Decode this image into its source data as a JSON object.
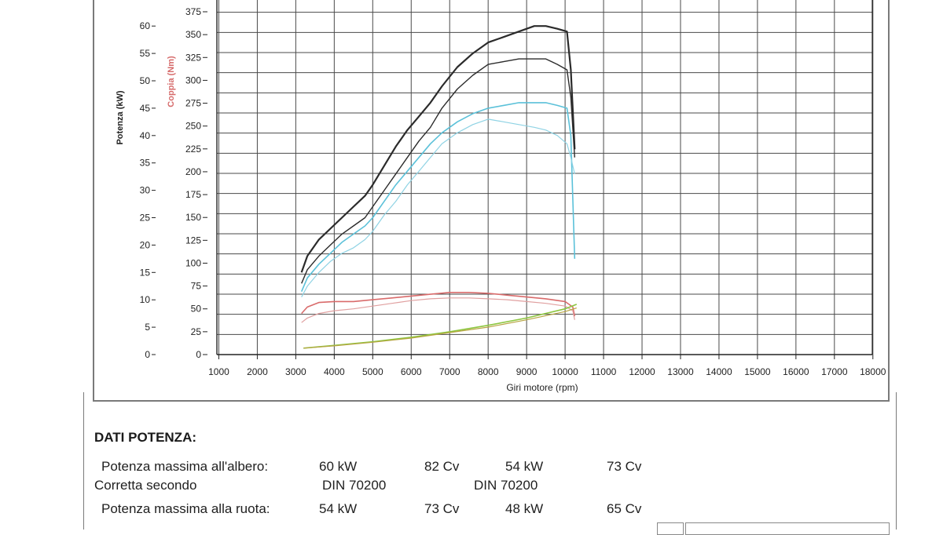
{
  "chart_data": {
    "type": "line",
    "xlabel": "Giri motore (rpm)",
    "x_ticks": [
      1000,
      2000,
      3000,
      4000,
      5000,
      6000,
      7000,
      8000,
      9000,
      10000,
      11000,
      12000,
      13000,
      14000,
      15000,
      16000,
      17000,
      18000
    ],
    "xlim": [
      800,
      18000
    ],
    "y_left": {
      "label": "Potenza (kW)",
      "ticks": [
        0,
        5,
        10,
        15,
        20,
        25,
        30,
        35,
        40,
        45,
        50,
        55,
        60
      ],
      "ylim": [
        0,
        66
      ]
    },
    "y_right": {
      "label": "Coppia (Nm)",
      "ticks": [
        0,
        25,
        50,
        75,
        100,
        125,
        150,
        175,
        200,
        225,
        250,
        275,
        300,
        325,
        350,
        375
      ],
      "ylim": [
        0,
        390
      ]
    },
    "grid": true,
    "series": [
      {
        "color": "#2b2b2b",
        "axis": "left",
        "width": 2.2,
        "x": [
          3150,
          3300,
          3600,
          3900,
          4200,
          4500,
          4800,
          5000,
          5300,
          5600,
          5900,
          6200,
          6500,
          6800,
          7200,
          7600,
          8000,
          8400,
          8800,
          9200,
          9500,
          9800,
          10050,
          10150,
          10250
        ],
        "y": [
          15.0,
          18.0,
          21.0,
          23.0,
          25.0,
          27.0,
          29.0,
          31.0,
          34.5,
          38.0,
          41.0,
          43.5,
          46.0,
          49.0,
          52.5,
          55.0,
          57.0,
          58.0,
          59.0,
          60.0,
          60.0,
          59.5,
          59.0,
          52.0,
          37.5
        ]
      },
      {
        "color": "#2b2b2b",
        "axis": "left",
        "width": 1.4,
        "x": [
          3150,
          3300,
          3600,
          3900,
          4200,
          4500,
          4800,
          5000,
          5300,
          5600,
          5900,
          6200,
          6500,
          6800,
          7200,
          7600,
          8000,
          8400,
          8800,
          9200,
          9500,
          9800,
          10050,
          10150,
          10250
        ],
        "y": [
          13.0,
          15.5,
          18.0,
          20.0,
          22.0,
          23.5,
          25.0,
          27.0,
          30.0,
          33.0,
          36.0,
          39.0,
          41.5,
          45.0,
          48.5,
          51.0,
          53.0,
          53.5,
          54.0,
          54.0,
          54.0,
          53.0,
          52.0,
          47.0,
          36.0
        ]
      },
      {
        "color": "#5bc1d9",
        "axis": "left",
        "width": 1.6,
        "x": [
          3150,
          3300,
          3600,
          3900,
          4200,
          4500,
          4800,
          5000,
          5300,
          5600,
          5900,
          6200,
          6500,
          6800,
          7200,
          7600,
          8000,
          8400,
          8800,
          9200,
          9500,
          9800,
          10050,
          10150,
          10250
        ],
        "y": [
          11.5,
          14.0,
          16.5,
          18.5,
          20.5,
          22.0,
          23.5,
          25.0,
          28.0,
          31.0,
          33.5,
          36.0,
          38.5,
          40.5,
          42.5,
          44.0,
          45.0,
          45.5,
          46.0,
          46.0,
          46.0,
          45.5,
          45.0,
          40.0,
          17.5
        ]
      },
      {
        "color": "#8fd3e4",
        "axis": "left",
        "width": 1.2,
        "x": [
          3150,
          3300,
          3600,
          3900,
          4200,
          4500,
          4800,
          5000,
          5300,
          5600,
          5900,
          6200,
          6500,
          6800,
          7200,
          7600,
          8000,
          8400,
          8800,
          9200,
          9500,
          9800,
          10050,
          10150,
          10250
        ],
        "y": [
          10.5,
          12.5,
          15.0,
          17.0,
          18.5,
          19.5,
          21.0,
          22.5,
          25.5,
          28.0,
          31.0,
          33.5,
          36.0,
          38.5,
          40.5,
          42.0,
          43.0,
          42.5,
          42.0,
          41.5,
          41.0,
          40.0,
          38.5,
          36.0,
          33.0
        ]
      },
      {
        "color": "#d96b6b",
        "axis": "right",
        "width": 1.6,
        "x": [
          3150,
          3300,
          3600,
          4000,
          4500,
          5000,
          5500,
          6000,
          6500,
          7000,
          7500,
          8000,
          8500,
          9000,
          9500,
          10000,
          10200,
          10250
        ],
        "y": [
          45,
          52,
          57,
          58,
          58,
          60,
          62,
          64,
          66,
          68,
          68,
          67,
          65,
          63,
          61,
          58,
          52,
          42
        ]
      },
      {
        "color": "#e0a0a0",
        "axis": "right",
        "width": 1.2,
        "x": [
          3150,
          3300,
          3600,
          4000,
          4500,
          5000,
          5500,
          6000,
          6500,
          7000,
          7500,
          8000,
          8500,
          9000,
          9500,
          10000,
          10200,
          10250
        ],
        "y": [
          35,
          40,
          45,
          48,
          50,
          53,
          56,
          59,
          61,
          62,
          62,
          61,
          60,
          58,
          56,
          53,
          48,
          38
        ]
      },
      {
        "color": "#8cc63f",
        "axis": "right",
        "width": 1.6,
        "x": [
          3200,
          4000,
          5000,
          6000,
          7000,
          8000,
          9000,
          10000,
          10300
        ],
        "y": [
          7,
          10,
          14,
          19,
          25,
          32,
          40,
          50,
          55
        ]
      },
      {
        "color": "#b7a542",
        "axis": "right",
        "width": 1.2,
        "x": [
          3200,
          4000,
          5000,
          6000,
          7000,
          8000,
          9000,
          10000,
          10300
        ],
        "y": [
          7,
          9.5,
          13.5,
          18,
          24,
          30,
          38,
          47,
          51
        ]
      }
    ]
  },
  "data_section": {
    "title": "DATI POTENZA:",
    "rows": [
      {
        "label": "Potenza massima all'albero:",
        "v1": "60  kW",
        "v2": "82  Cv",
        "v3": "54  kW",
        "v4": "73  Cv"
      },
      {
        "label": "Corretta secondo",
        "v1": "DIN  70200",
        "v2": "",
        "v3": "DIN  70200",
        "v4": ""
      },
      {
        "label": "Potenza massima alla ruota:",
        "v1": "54  kW",
        "v2": "73  Cv",
        "v3": "48  kW",
        "v4": "65  Cv"
      }
    ]
  }
}
